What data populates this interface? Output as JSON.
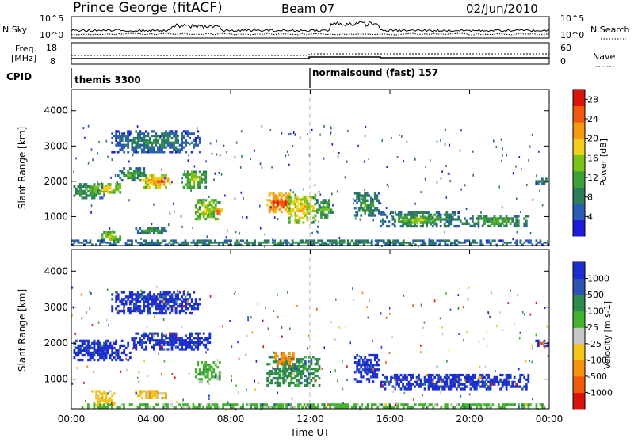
{
  "header": {
    "station": "Prince George (fitACF)",
    "beam": "Beam 07",
    "date": "02/Jun/2010"
  },
  "top_panels": {
    "nsky": {
      "label": "N.Sky",
      "ticks": [
        "10^5",
        "10^0"
      ]
    },
    "nsearch": {
      "label": "N.Search",
      "ticks": [
        "10^5",
        "10^0"
      ]
    },
    "freq": {
      "label_line1": "Freq.",
      "label_line2": "[MHz]",
      "ticks": [
        "18",
        "8"
      ]
    },
    "nave": {
      "label": "Nave",
      "ticks": [
        "60",
        "0"
      ]
    },
    "cpid": {
      "label": "CPID",
      "programs": [
        {
          "name": "themis 3300",
          "start_hour": 0
        },
        {
          "name": "normalsound (fast) 157",
          "start_hour": 12
        }
      ]
    }
  },
  "time_axis": {
    "xlabel": "Time UT",
    "ticks": [
      "00:00",
      "04:00",
      "08:00",
      "12:00",
      "16:00",
      "20:00",
      "00:00"
    ],
    "range_hours": [
      0,
      24
    ]
  },
  "chart_data": [
    {
      "type": "heatmap",
      "name": "power",
      "xlabel": "Time UT",
      "ylabel": "Slant Range [km]",
      "x_range_hours": [
        0,
        24
      ],
      "ylim": [
        180,
        4600
      ],
      "yticks": [
        "1000",
        "2000",
        "3000",
        "4000"
      ],
      "colorbar": {
        "label": "Power [dB]",
        "ticks": [
          "4",
          "8",
          "12",
          "16",
          "20",
          "24",
          "28"
        ],
        "range": [
          0,
          30
        ],
        "colors": [
          "#1c1cd8",
          "#2a5cb5",
          "#2e7d5a",
          "#3fa03a",
          "#7dc41a",
          "#f2cf1c",
          "#f59a12",
          "#ef5a0f",
          "#d8140c"
        ]
      },
      "regions": [
        {
          "t": [
            0.1,
            1.8
          ],
          "r": [
            1500,
            1950
          ],
          "v": 10
        },
        {
          "t": [
            1.0,
            2.5
          ],
          "r": [
            1650,
            1950
          ],
          "v": 16
        },
        {
          "t": [
            2.3,
            3.8
          ],
          "r": [
            2000,
            2400
          ],
          "v": 10
        },
        {
          "t": [
            3.5,
            4.8
          ],
          "r": [
            1800,
            2200
          ],
          "v": 18
        },
        {
          "t": [
            4.0,
            5.0
          ],
          "r": [
            1900,
            2100
          ],
          "v": 22
        },
        {
          "t": [
            5.5,
            6.8
          ],
          "r": [
            1800,
            2300
          ],
          "v": 13
        },
        {
          "t": [
            2.0,
            6.5
          ],
          "r": [
            2800,
            3450
          ],
          "v": 7
        },
        {
          "t": [
            3.2,
            4.8
          ],
          "r": [
            500,
            700
          ],
          "v": 9
        },
        {
          "t": [
            1.5,
            2.5
          ],
          "r": [
            250,
            600
          ],
          "v": 14
        },
        {
          "t": [
            6.2,
            7.5
          ],
          "r": [
            900,
            1500
          ],
          "v": 15
        },
        {
          "t": [
            7.2,
            7.6
          ],
          "r": [
            1000,
            1250
          ],
          "v": 22
        },
        {
          "t": [
            9.8,
            11.0
          ],
          "r": [
            1100,
            1700
          ],
          "v": 22
        },
        {
          "t": [
            10.0,
            11.0
          ],
          "r": [
            1300,
            1450
          ],
          "v": 27
        },
        {
          "t": [
            10.8,
            12.3
          ],
          "r": [
            800,
            1650
          ],
          "v": 17
        },
        {
          "t": [
            12.3,
            13.2
          ],
          "r": [
            950,
            1500
          ],
          "v": 11
        },
        {
          "t": [
            14.2,
            15.5
          ],
          "r": [
            1000,
            1700
          ],
          "v": 9
        },
        {
          "t": [
            15.5,
            19.5
          ],
          "r": [
            700,
            1150
          ],
          "v": 9
        },
        {
          "t": [
            16.5,
            18.5
          ],
          "r": [
            800,
            1000
          ],
          "v": 14
        },
        {
          "t": [
            19.5,
            23.0
          ],
          "r": [
            700,
            1050
          ],
          "v": 10
        },
        {
          "t": [
            23.3,
            24.0
          ],
          "r": [
            1900,
            2100
          ],
          "v": 7
        },
        {
          "t": [
            0.0,
            24.0
          ],
          "r": [
            180,
            350
          ],
          "v": 8
        }
      ]
    },
    {
      "type": "heatmap",
      "name": "velocity",
      "xlabel": "Time UT",
      "ylabel": "Slant Range [km]",
      "x_range_hours": [
        0,
        24
      ],
      "ylim": [
        180,
        4600
      ],
      "yticks": [
        "1000",
        "2000",
        "3000",
        "4000"
      ],
      "colorbar": {
        "label": "Velocity [m s-1]",
        "ticks": [
          "1000",
          "500",
          "100",
          "25",
          "-25",
          "-100",
          "-500",
          "-1000"
        ],
        "colors": [
          "#1c2fd0",
          "#2c55b4",
          "#2f8a4c",
          "#44b331",
          "#c6c6c6",
          "#f2c41c",
          "#f5920f",
          "#ef5a0c",
          "#d8140c"
        ]
      },
      "regions": [
        {
          "t": [
            0.1,
            3.0
          ],
          "r": [
            1500,
            2100
          ],
          "v": 0
        },
        {
          "t": [
            3.0,
            7.0
          ],
          "r": [
            1800,
            2300
          ],
          "v": 0
        },
        {
          "t": [
            2.0,
            6.5
          ],
          "r": [
            2800,
            3450
          ],
          "v": 0
        },
        {
          "t": [
            3.2,
            4.8
          ],
          "r": [
            450,
            700
          ],
          "v": 5
        },
        {
          "t": [
            1.0,
            2.2
          ],
          "r": [
            250,
            700
          ],
          "v": 5
        },
        {
          "t": [
            6.2,
            7.5
          ],
          "r": [
            900,
            1500
          ],
          "v": 3
        },
        {
          "t": [
            9.8,
            12.5
          ],
          "r": [
            800,
            1650
          ],
          "v": 2
        },
        {
          "t": [
            10.2,
            11.2
          ],
          "r": [
            1400,
            1750
          ],
          "v": 6
        },
        {
          "t": [
            14.2,
            15.5
          ],
          "r": [
            900,
            1700
          ],
          "v": 0
        },
        {
          "t": [
            15.5,
            23.0
          ],
          "r": [
            700,
            1150
          ],
          "v": 0
        },
        {
          "t": [
            23.3,
            24.0
          ],
          "r": [
            1900,
            2100
          ],
          "v": 0
        },
        {
          "t": [
            0.0,
            24.0
          ],
          "r": [
            180,
            330
          ],
          "v": 3
        }
      ]
    }
  ]
}
